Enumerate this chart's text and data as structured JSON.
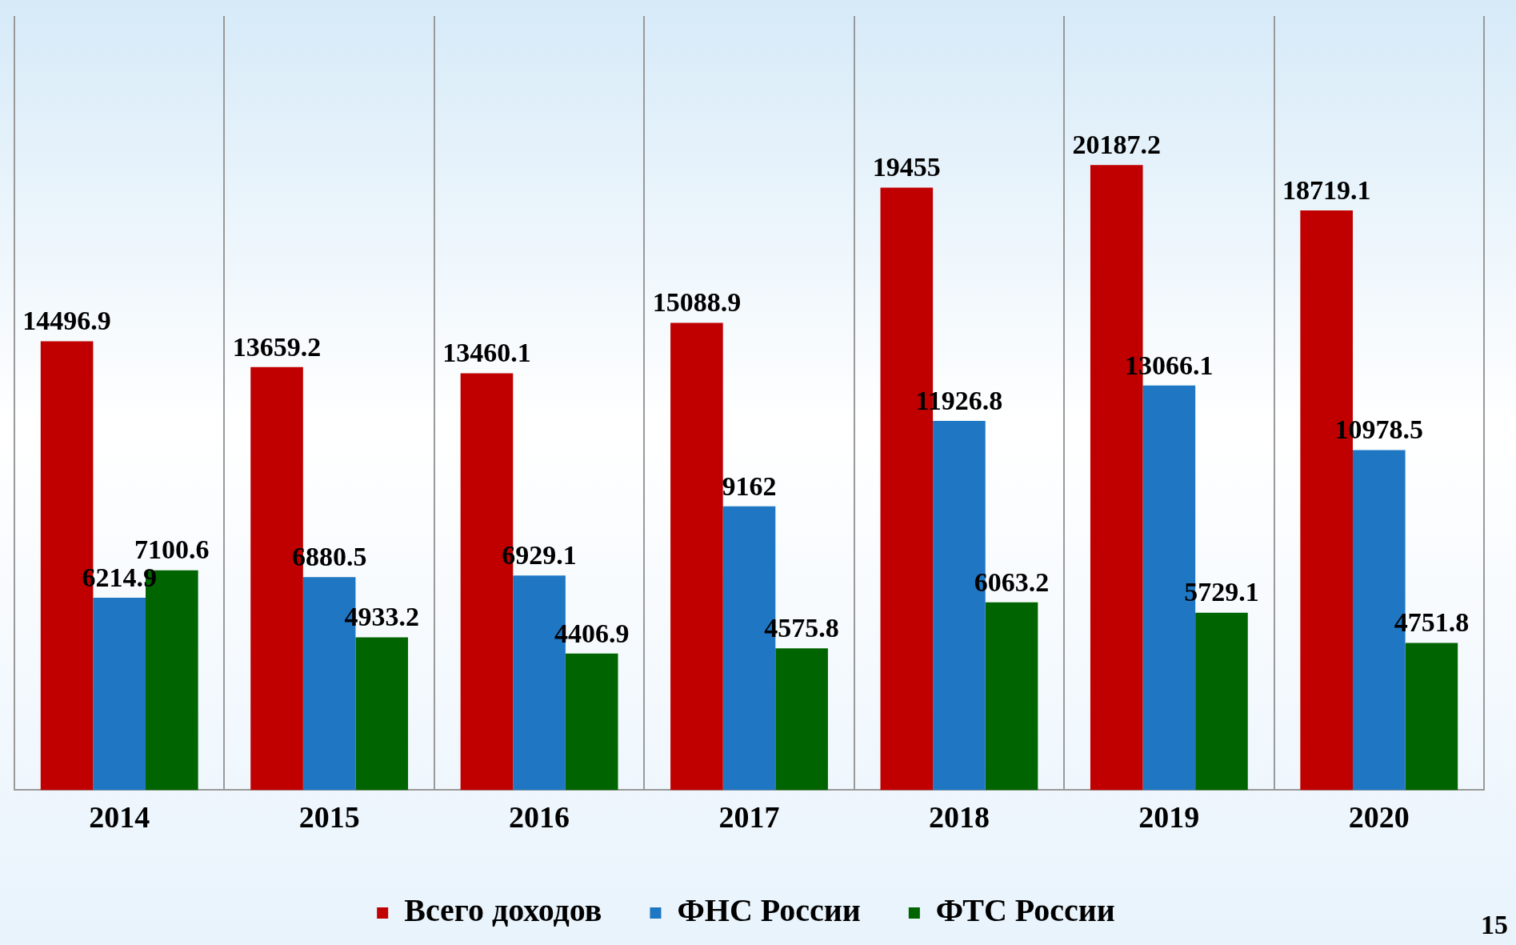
{
  "chart_data": {
    "type": "bar",
    "categories": [
      "2014",
      "2015",
      "2016",
      "2017",
      "2018",
      "2019",
      "2020"
    ],
    "series": [
      {
        "name": "Всего доходов",
        "color": "#c00000",
        "values": [
          14496.9,
          13659.2,
          13460.1,
          15088.9,
          19455,
          20187.2,
          18719.1
        ]
      },
      {
        "name": "ФНС России",
        "color": "#1f77c4",
        "values": [
          6214.9,
          6880.5,
          6929.1,
          9162,
          11926.8,
          13066.1,
          10978.5
        ]
      },
      {
        "name": "ФТС России",
        "color": "#006400",
        "values": [
          7100.6,
          4933.2,
          4406.9,
          4575.8,
          6063.2,
          5729.1,
          4751.8
        ]
      }
    ],
    "data_labels": true,
    "grid": "x",
    "legend": "bottom",
    "tick_labels": "x",
    "annotations": [
      "15"
    ]
  }
}
